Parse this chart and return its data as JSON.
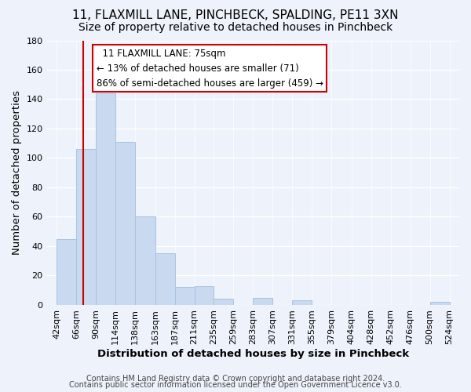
{
  "title": "11, FLAXMILL LANE, PINCHBECK, SPALDING, PE11 3XN",
  "subtitle": "Size of property relative to detached houses in Pinchbeck",
  "xlabel": "Distribution of detached houses by size in Pinchbeck",
  "ylabel": "Number of detached properties",
  "bar_color": "#c8d9f0",
  "bar_edgecolor": "#a8c4e0",
  "bins": [
    42,
    66,
    90,
    114,
    138,
    163,
    187,
    211,
    235,
    259,
    283,
    307,
    331,
    355,
    379,
    404,
    428,
    452,
    476,
    500,
    524
  ],
  "counts": [
    45,
    106,
    144,
    111,
    60,
    35,
    12,
    13,
    4,
    0,
    5,
    0,
    3,
    0,
    0,
    0,
    0,
    0,
    0,
    2
  ],
  "tick_labels": [
    "42sqm",
    "66sqm",
    "90sqm",
    "114sqm",
    "138sqm",
    "163sqm",
    "187sqm",
    "211sqm",
    "235sqm",
    "259sqm",
    "283sqm",
    "307sqm",
    "331sqm",
    "355sqm",
    "379sqm",
    "404sqm",
    "428sqm",
    "452sqm",
    "476sqm",
    "500sqm",
    "524sqm"
  ],
  "ylim": [
    0,
    180
  ],
  "yticks": [
    0,
    20,
    40,
    60,
    80,
    100,
    120,
    140,
    160,
    180
  ],
  "property_line_x": 75,
  "property_line_color": "#cc0000",
  "annotation_title": "11 FLAXMILL LANE: 75sqm",
  "annotation_line1": "← 13% of detached houses are smaller (71)",
  "annotation_line2": "86% of semi-detached houses are larger (459) →",
  "footer1": "Contains HM Land Registry data © Crown copyright and database right 2024.",
  "footer2": "Contains public sector information licensed under the Open Government Licence v3.0.",
  "background_color": "#eef2fa",
  "grid_color": "#ffffff",
  "title_fontsize": 11,
  "subtitle_fontsize": 10,
  "axis_label_fontsize": 9.5,
  "tick_fontsize": 8,
  "annotation_fontsize": 8.5,
  "footer_fontsize": 7
}
